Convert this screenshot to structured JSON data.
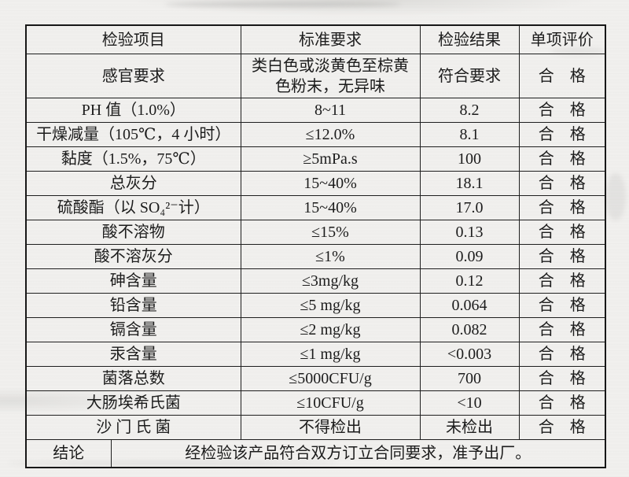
{
  "colors": {
    "paper": "#f1f0ee",
    "ink": "#1c1c1c",
    "table_border": "#1f1f1f"
  },
  "table": {
    "headers": [
      "检验项目",
      "标准要求",
      "检验结果",
      "单项评价"
    ],
    "rows": [
      {
        "item": "感官要求",
        "standard": "类白色或淡黄色至棕黄色粉末，无异味",
        "result": "符合要求",
        "evaluation": "合　格"
      },
      {
        "item": "PH 值（1.0%）",
        "standard": "8~11",
        "result": "8.2",
        "evaluation": "合　格"
      },
      {
        "item": "干燥减量（105℃，4 小时）",
        "standard": "≤12.0%",
        "result": "8.1",
        "evaluation": "合　格"
      },
      {
        "item": "黏度（1.5%，75℃）",
        "standard": "≥5mPa.s",
        "result": "100",
        "evaluation": "合　格"
      },
      {
        "item": "总灰分",
        "standard": "15~40%",
        "result": "18.1",
        "evaluation": "合　格"
      },
      {
        "item": "硫酸酯（以 SO₄²⁻计）",
        "standard": "15~40%",
        "result": "17.0",
        "evaluation": "合　格"
      },
      {
        "item": "酸不溶物",
        "standard": "≤15%",
        "result": "0.13",
        "evaluation": "合　格"
      },
      {
        "item": "酸不溶灰分",
        "standard": "≤1%",
        "result": "0.09",
        "evaluation": "合　格"
      },
      {
        "item": "砷含量",
        "standard": "≤3mg/kg",
        "result": "0.12",
        "evaluation": "合　格"
      },
      {
        "item": "铅含量",
        "standard": "≤5 mg/kg",
        "result": "0.064",
        "evaluation": "合　格"
      },
      {
        "item": "镉含量",
        "standard": "≤2 mg/kg",
        "result": "0.082",
        "evaluation": "合　格"
      },
      {
        "item": "汞含量",
        "standard": "≤1 mg/kg",
        "result": "<0.003",
        "evaluation": "合　格"
      },
      {
        "item": "菌落总数",
        "standard": "≤5000CFU/g",
        "result": "700",
        "evaluation": "合　格"
      },
      {
        "item": "大肠埃希氏菌",
        "standard": "≤10CFU/g",
        "result": "<10",
        "evaluation": "合　格"
      },
      {
        "item": "沙 门 氏 菌",
        "standard": "不得检出",
        "result": "未检出",
        "evaluation": "合　格"
      }
    ],
    "conclusion": {
      "label": "结论",
      "text": "经检验该产品符合双方订立合同要求，准予出厂。"
    }
  }
}
